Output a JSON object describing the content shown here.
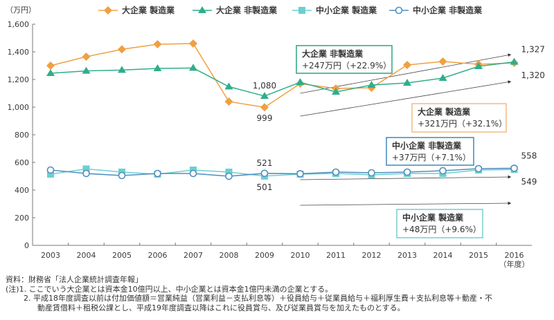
{
  "chart_data": {
    "type": "line",
    "title": "",
    "unit_label": "（万円）",
    "xlabel": "（年度）",
    "ylabel": "",
    "ylim": [
      0,
      1600
    ],
    "yticks": [
      0,
      200,
      400,
      600,
      800,
      1000,
      1200,
      1400,
      1600
    ],
    "ytick_labels": [
      "0",
      "200",
      "400",
      "600",
      "800",
      "1,000",
      "1,200",
      "1,400",
      "1,600"
    ],
    "grid": false,
    "legend_position": "top",
    "x": [
      "2003",
      "2004",
      "2005",
      "2006",
      "2007",
      "2008",
      "2009",
      "2010",
      "2011",
      "2012",
      "2013",
      "2014",
      "2015",
      "2016"
    ],
    "series": [
      {
        "name": "大企業 製造業",
        "marker": "diamond",
        "color": "#f0a040",
        "values": [
          1300,
          1365,
          1418,
          1455,
          1460,
          1040,
          999,
          1170,
          1135,
          1140,
          1305,
          1330,
          1310,
          1320
        ]
      },
      {
        "name": "大企業 非製造業",
        "marker": "triangle",
        "color": "#2fae8a",
        "values": [
          1245,
          1262,
          1268,
          1280,
          1283,
          1148,
          1080,
          1180,
          1110,
          1160,
          1175,
          1210,
          1295,
          1327
        ]
      },
      {
        "name": "中小企業 製造業",
        "marker": "square",
        "color": "#6ccfd0",
        "values": [
          515,
          553,
          530,
          515,
          545,
          530,
          501,
          515,
          520,
          510,
          520,
          520,
          545,
          549
        ]
      },
      {
        "name": "中小企業 非製造業",
        "marker": "circle",
        "color": "#4f8fc0",
        "values": [
          545,
          520,
          505,
          520,
          520,
          500,
          521,
          518,
          530,
          525,
          530,
          540,
          555,
          558
        ]
      }
    ],
    "data_labels": [
      {
        "text": "1,080",
        "x": "2009",
        "value": 1080,
        "series": 1,
        "pos": "above"
      },
      {
        "text": "999",
        "x": "2009",
        "value": 999,
        "series": 0,
        "pos": "below"
      },
      {
        "text": "521",
        "x": "2009",
        "value": 521,
        "series": 3,
        "pos": "above"
      },
      {
        "text": "501",
        "x": "2009",
        "value": 501,
        "series": 2,
        "pos": "below"
      },
      {
        "text": "1,327",
        "x": "2016",
        "value": 1327,
        "series": 1,
        "pos": "above-right"
      },
      {
        "text": "1,320",
        "x": "2016",
        "value": 1320,
        "series": 0,
        "pos": "below-right"
      },
      {
        "text": "558",
        "x": "2016",
        "value": 558,
        "series": 3,
        "pos": "above-right"
      },
      {
        "text": "549",
        "x": "2016",
        "value": 549,
        "series": 2,
        "pos": "below-right"
      }
    ],
    "annotations": [
      {
        "title": "大企業 非製造業",
        "change": "+247万円（+22.9%）",
        "border_color": "#3aa98a",
        "arrow_from": [
          "2010",
          1100
        ],
        "arrow_to": [
          "2016",
          1380
        ]
      },
      {
        "title": "大企業 製造業",
        "change": "+321万円（+32.1%）",
        "border_color": "#f2c08a",
        "arrow_from": [
          "2010",
          935
        ],
        "arrow_to": [
          "2016",
          1185
        ]
      },
      {
        "title": "中小企業 非製造業",
        "change": "+37万円（+7.1%）",
        "border_color": "#4a90c0",
        "arrow_from": [
          "2010",
          475
        ],
        "arrow_to": [
          "2016",
          495
        ]
      },
      {
        "title": "中小企業 製造業",
        "change": "+48万円（+9.6%）",
        "border_color": "#7fd0d0",
        "arrow_from": [
          "2010",
          290
        ],
        "arrow_to": [
          "2016",
          305
        ]
      }
    ]
  },
  "notes": {
    "source": "資料：財務省「法人企業統計調査年報」",
    "note1": "(注)1. ここでいう大企業とは資本金10億円以上、中小企業とは資本金1億円未満の企業とする。",
    "note2a": "2. 平成18年度調査以前は付加価値額＝営業純益（営業利益－支払利息等）＋役員給与＋従業員給与＋福利厚生費＋支払利息等＋動産・不",
    "note2b": "動産賃借料＋租税公課とし、平成19年度調査以降はこれに役員賞与、及び従業員賞与を加えたものとする。"
  }
}
